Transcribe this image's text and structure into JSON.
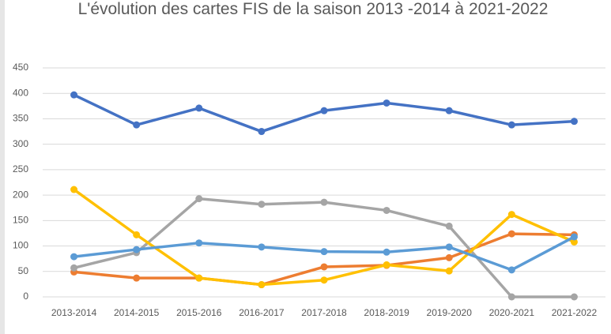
{
  "chart_data": {
    "type": "line",
    "title": "L'évolution des cartes FIS de la saison 2013 -2014 à 2021-2022",
    "categories": [
      "2013-2014",
      "2014-2015",
      "2015-2016",
      "2016-2017",
      "2017-2018",
      "2018-2019",
      "2019-2020",
      "2020-2021",
      "2021-2022"
    ],
    "series": [
      {
        "color": "#4472c4",
        "values": [
          397,
          338,
          371,
          325,
          366,
          381,
          366,
          338,
          345
        ]
      },
      {
        "color": "#ed7d31",
        "values": [
          49,
          37,
          37,
          24,
          59,
          62,
          77,
          124,
          122
        ]
      },
      {
        "color": "#a5a5a5",
        "values": [
          57,
          87,
          193,
          182,
          186,
          170,
          139,
          0,
          0
        ]
      },
      {
        "color": "#ffc000",
        "values": [
          211,
          122,
          37,
          24,
          33,
          63,
          51,
          162,
          108
        ]
      },
      {
        "color": "#5b9bd5",
        "values": [
          79,
          93,
          106,
          98,
          89,
          88,
          98,
          53,
          118
        ]
      }
    ],
    "ylim": [
      0,
      450
    ],
    "yticks": [
      0,
      50,
      100,
      150,
      200,
      250,
      300,
      350,
      400,
      450
    ],
    "grid": true
  }
}
